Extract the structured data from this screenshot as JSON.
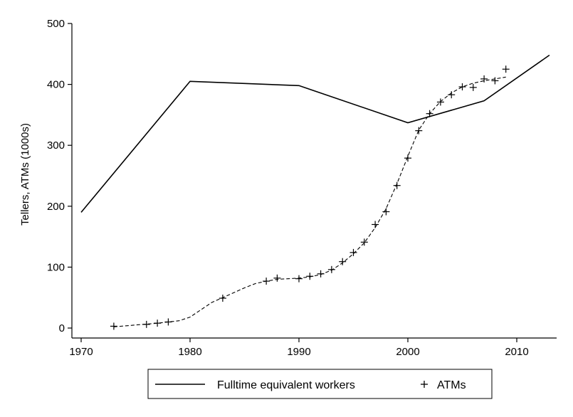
{
  "chart_data": {
    "type": "line",
    "title": "",
    "xlabel": "",
    "ylabel": "Tellers, ATMs (1000s)",
    "xlim": [
      1970,
      2013
    ],
    "ylim": [
      0,
      500
    ],
    "x_ticks": [
      1970,
      1980,
      1990,
      2000,
      2010
    ],
    "y_ticks": [
      0,
      100,
      200,
      300,
      400,
      500
    ],
    "grid": false,
    "legend_position": "bottom",
    "series": [
      {
        "name": "Fulltime equivalent workers",
        "style": "solid-line",
        "color": "#000000",
        "points": [
          [
            1970,
            190
          ],
          [
            1980,
            405
          ],
          [
            1990,
            398
          ],
          [
            2000,
            337
          ],
          [
            2007,
            373
          ],
          [
            2013,
            448
          ]
        ]
      },
      {
        "name": "ATMs",
        "style": "plus-markers",
        "color": "#000000",
        "points": [
          [
            1973,
            3
          ],
          [
            1976,
            6
          ],
          [
            1977,
            8
          ],
          [
            1978,
            10
          ],
          [
            1983,
            49
          ],
          [
            1987,
            77
          ],
          [
            1988,
            82
          ],
          [
            1990,
            81
          ],
          [
            1991,
            85
          ],
          [
            1992,
            89
          ],
          [
            1993,
            96
          ],
          [
            1994,
            109
          ],
          [
            1995,
            124
          ],
          [
            1996,
            141
          ],
          [
            1997,
            170
          ],
          [
            1998,
            191
          ],
          [
            1999,
            234
          ],
          [
            2000,
            279
          ],
          [
            2001,
            324
          ],
          [
            2002,
            352
          ],
          [
            2003,
            371
          ],
          [
            2004,
            383
          ],
          [
            2005,
            396
          ],
          [
            2006,
            395
          ],
          [
            2007,
            409
          ],
          [
            2008,
            406
          ],
          [
            2009,
            425
          ]
        ]
      },
      {
        "name": "",
        "style": "dashed-line",
        "color": "#000000",
        "points": [
          [
            1973,
            2
          ],
          [
            1975,
            5
          ],
          [
            1977,
            8
          ],
          [
            1979,
            12
          ],
          [
            1980,
            18
          ],
          [
            1981,
            30
          ],
          [
            1982,
            42
          ],
          [
            1983,
            50
          ],
          [
            1984,
            58
          ],
          [
            1985,
            66
          ],
          [
            1986,
            73
          ],
          [
            1987,
            77
          ],
          [
            1988,
            80
          ],
          [
            1989,
            81
          ],
          [
            1990,
            82
          ],
          [
            1991,
            84
          ],
          [
            1992,
            88
          ],
          [
            1993,
            95
          ],
          [
            1994,
            107
          ],
          [
            1995,
            122
          ],
          [
            1996,
            140
          ],
          [
            1997,
            165
          ],
          [
            1998,
            196
          ],
          [
            1999,
            237
          ],
          [
            2000,
            282
          ],
          [
            2001,
            325
          ],
          [
            2002,
            352
          ],
          [
            2003,
            372
          ],
          [
            2004,
            386
          ],
          [
            2005,
            396
          ],
          [
            2006,
            402
          ],
          [
            2007,
            406
          ],
          [
            2008,
            409
          ],
          [
            2009,
            412
          ]
        ]
      }
    ]
  }
}
